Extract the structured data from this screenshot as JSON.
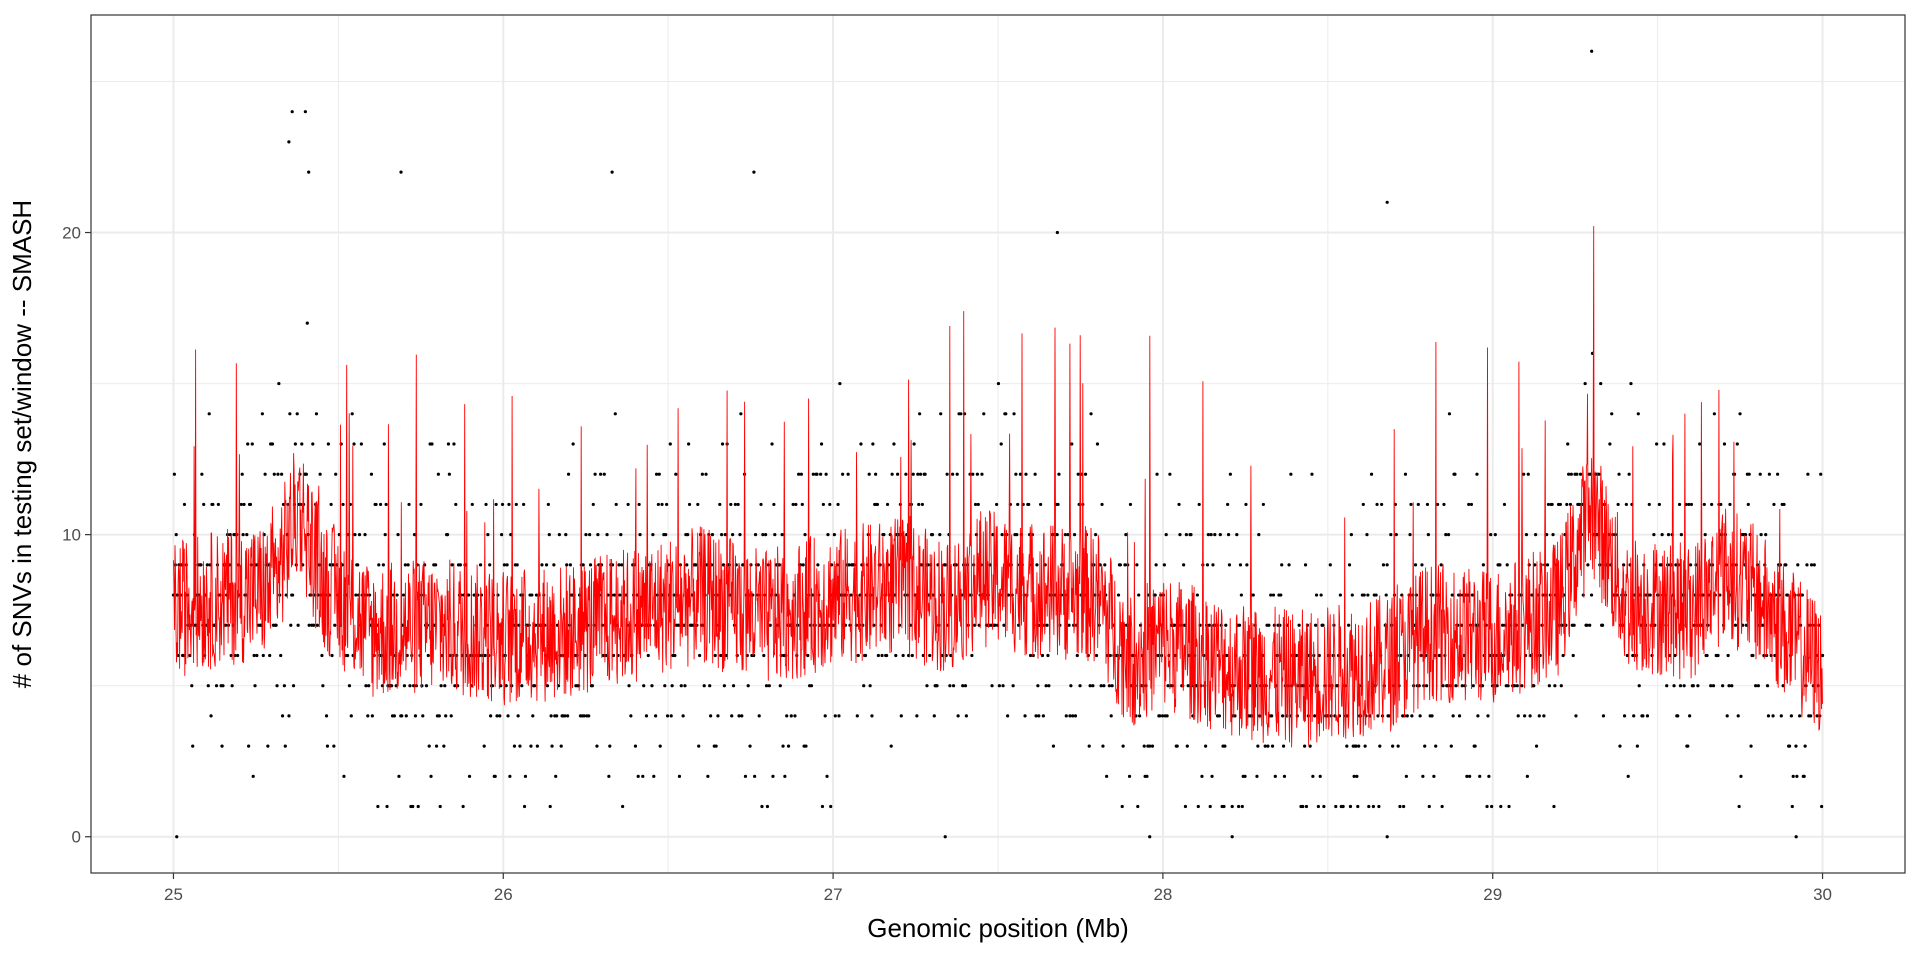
{
  "chart_data": {
    "type": "scatter",
    "title": "",
    "xlabel": "Genomic position (Mb)",
    "ylabel": "# of SNVs in testing set/window -- SMASH",
    "xlim": [
      24.75,
      30.25
    ],
    "ylim": [
      -1.2,
      27.2
    ],
    "x_ticks": [
      25,
      26,
      27,
      28,
      29,
      30
    ],
    "x_tick_labels": [
      "25",
      "26",
      "27",
      "28",
      "29",
      "30"
    ],
    "y_ticks": [
      0,
      10,
      20
    ],
    "y_tick_labels": [
      "0",
      "10",
      "20"
    ],
    "grid": true,
    "theme": "bw",
    "colors": {
      "points": "#000000",
      "smooth_line": "#ff0000",
      "grid": "#ebebeb",
      "panel_border": "#333333"
    },
    "series": [
      {
        "kind": "points",
        "note_values": "dense per-window SNV counts from 25 to 30 Mb; notable outliers listed",
        "outliers": [
          {
            "x": 25.36,
            "y": 24
          },
          {
            "x": 25.4,
            "y": 24
          },
          {
            "x": 25.35,
            "y": 23
          },
          {
            "x": 25.41,
            "y": 22
          },
          {
            "x": 25.69,
            "y": 22
          },
          {
            "x": 26.33,
            "y": 22
          },
          {
            "x": 26.76,
            "y": 22
          },
          {
            "x": 27.68,
            "y": 20
          },
          {
            "x": 28.68,
            "y": 21
          },
          {
            "x": 29.3,
            "y": 26
          },
          {
            "x": 25.01,
            "y": 0
          },
          {
            "x": 27.34,
            "y": 0
          },
          {
            "x": 27.96,
            "y": 0
          },
          {
            "x": 28.21,
            "y": 0
          },
          {
            "x": 28.68,
            "y": 0
          },
          {
            "x": 29.92,
            "y": 0
          }
        ]
      },
      {
        "kind": "line",
        "note_values": "smoothed estimate of SNV density (SMASH)",
        "anchors": {
          "x": [
            25.0,
            25.1,
            25.2,
            25.3,
            25.38,
            25.45,
            25.6,
            25.8,
            26.0,
            26.2,
            26.4,
            26.6,
            26.8,
            27.0,
            27.2,
            27.35,
            27.45,
            27.6,
            27.8,
            27.9,
            28.0,
            28.2,
            28.4,
            28.6,
            28.7,
            28.8,
            29.0,
            29.2,
            29.3,
            29.4,
            29.6,
            29.7,
            29.8,
            29.9,
            30.0
          ],
          "y": [
            7.5,
            7.8,
            8.0,
            8.2,
            11.0,
            8.5,
            6.8,
            7.0,
            6.6,
            6.8,
            7.4,
            8.0,
            7.2,
            7.9,
            8.3,
            7.6,
            8.6,
            8.2,
            8.0,
            5.8,
            6.5,
            5.6,
            5.2,
            5.6,
            5.8,
            6.8,
            6.6,
            7.6,
            11.0,
            7.8,
            7.4,
            8.8,
            8.0,
            6.6,
            5.5
          ]
        }
      }
    ]
  }
}
